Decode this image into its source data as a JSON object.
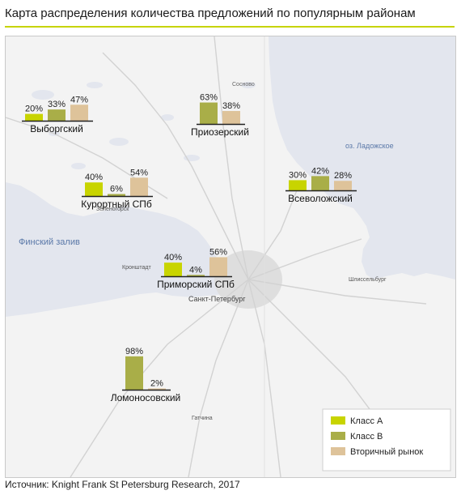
{
  "title": "Карта распределения количества предложений по популярным районам",
  "source": "Источник: Knight Frank St Petersburg Research, 2017",
  "colors": {
    "class_a": "#c8d400",
    "class_b": "#a9ae48",
    "secondary": "#dec39a",
    "accent_rule": "#c6d400",
    "water": "#e3e6ee",
    "land": "#f3f3f3"
  },
  "map_labels": {
    "gulf": "Финский залив",
    "ladoga": "оз. Ладожское",
    "spb": "Санкт-Петербург",
    "kronshtadt": "Кронштадт",
    "zelenogorsk": "Зеленогорск",
    "sosnovo": "Сосново",
    "shlisselburg": "Шлиссельбург",
    "gatchina": "Гатчина"
  },
  "legend": {
    "class_a": "Класс А",
    "class_b": "Класс В",
    "secondary": "Вторичный рынок"
  },
  "chart_data": {
    "type": "bar",
    "series_names": [
      "Класс А",
      "Класс В",
      "Вторичный рынок"
    ],
    "districts": [
      {
        "name": "Выборгский",
        "values": [
          20,
          33,
          47
        ]
      },
      {
        "name": "Приозерский",
        "values": [
          null,
          63,
          38
        ]
      },
      {
        "name": "Курортный СПб",
        "values": [
          40,
          6,
          54
        ]
      },
      {
        "name": "Всеволожский",
        "values": [
          30,
          42,
          28
        ]
      },
      {
        "name": "Приморский СПб",
        "values": [
          40,
          4,
          56
        ]
      },
      {
        "name": "Ломоносовский",
        "values": [
          null,
          98,
          2
        ]
      }
    ],
    "unit": "%"
  }
}
